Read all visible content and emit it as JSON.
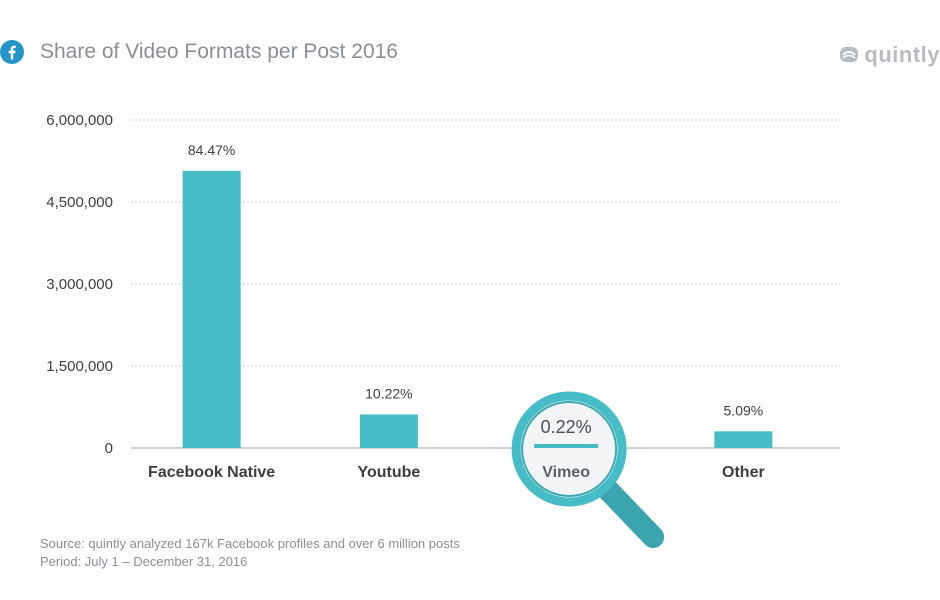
{
  "header": {
    "title": "Share of Video Formats per Post 2016",
    "brand": "quintly",
    "left_icon": "facebook-icon",
    "brand_icon": "quintly-logo-icon"
  },
  "colors": {
    "bar": "#45bcc6",
    "bar_dark": "#3aa8b1",
    "title": "#8a8f95",
    "grid": "#c9cdd1",
    "facebook_icon": "#2396c8"
  },
  "chart_data": {
    "type": "bar",
    "title": "Share of Video Formats per Post 2016",
    "categories": [
      "Facebook Native",
      "Youtube",
      "Vimeo",
      "Other"
    ],
    "values": [
      5070000,
      613000,
      13200,
      305000
    ],
    "data_labels": [
      "84.47%",
      "10.22%",
      "0.22%",
      "5.09%"
    ],
    "ylim": [
      0,
      6000000
    ],
    "yticks": [
      0,
      1500000,
      3000000,
      4500000,
      6000000
    ],
    "ytick_labels": [
      "0",
      "1,500,000",
      "3,000,000",
      "4,500,000",
      "6,000,000"
    ],
    "grid": true,
    "xlabel": "",
    "ylabel": "",
    "highlight": {
      "category": "Vimeo",
      "icon": "magnifier-icon"
    }
  },
  "footer": {
    "source": "Source: quintly analyzed 167k Facebook profiles and over 6 million posts",
    "period": "Period: July 1 – December 31, 2016"
  }
}
